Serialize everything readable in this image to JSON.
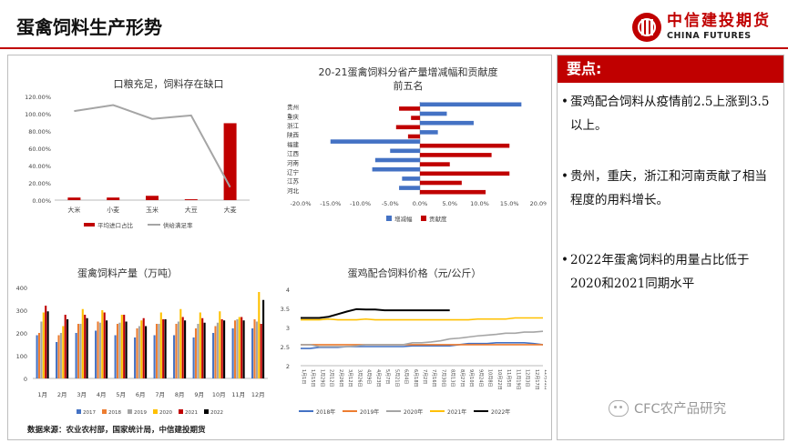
{
  "header": {
    "title": "蛋禽饲料生产形势"
  },
  "logo": {
    "cn": "中信建投期货",
    "en": "CHINA FUTURES"
  },
  "key_points": {
    "heading": "要点:",
    "items": [
      "蛋鸡配合饲料从疫情前2.5上涨到3.5以上。",
      "贵州，重庆，浙江和河南贡献了相当程度的用料增长。",
      "2022年蛋禽饲料的用量占比低于2020和2021同期水平"
    ]
  },
  "source": "数据来源：农业农村部，国家统计局，中信建投期货",
  "watermark": "CFC农产品研究",
  "colors": {
    "accent": "#c00000",
    "blue": "#4472c4",
    "red": "#c00000",
    "gray": "#a5a5a5",
    "yellow": "#ffc000",
    "black": "#000000",
    "orange": "#ed7d31"
  },
  "chart_data": [
    {
      "type": "bar",
      "title": "口粮充足，饲料存在缺口",
      "categories": [
        "大米",
        "小麦",
        "玉米",
        "大豆",
        "大麦"
      ],
      "ylim": [
        0,
        1.2
      ],
      "yticks": [
        "0.00%",
        "20.00%",
        "40.00%",
        "60.00%",
        "80.00%",
        "100.00%",
        "120.00%"
      ],
      "series": [
        {
          "name": "平均进口占比",
          "type": "bar",
          "values": [
            0.03,
            0.03,
            0.05,
            0.01,
            0.89
          ]
        },
        {
          "name": "供给满足率",
          "type": "line",
          "values": [
            1.03,
            1.1,
            0.94,
            0.98,
            0.15
          ]
        }
      ],
      "legend": "bottom"
    },
    {
      "type": "bar",
      "orientation": "horizontal",
      "title": "20-21蛋禽饲料分省产量增减幅和贡献度前五名",
      "categories": [
        "贵州",
        "重庆",
        "浙江",
        "陕西",
        "福建",
        "江西",
        "河南",
        "辽宁",
        "江苏",
        "河北"
      ],
      "xlim": [
        -0.2,
        0.2
      ],
      "xticks": [
        "-20.0%",
        "-15.0%",
        "-10.0%",
        "-5.0%",
        "0.0%",
        "5.0%",
        "10.0%",
        "15.0%",
        "20.0%"
      ],
      "series": [
        {
          "name": "增减幅",
          "values": [
            0.17,
            0.045,
            0.09,
            0.03,
            -0.15,
            -0.05,
            -0.075,
            -0.08,
            -0.03,
            -0.035
          ]
        },
        {
          "name": "贡献度",
          "values": [
            -0.035,
            -0.015,
            -0.04,
            -0.02,
            0.15,
            0.12,
            0.05,
            0.15,
            0.07,
            0.11
          ]
        }
      ],
      "legend": "bottom"
    },
    {
      "type": "bar",
      "title": "蛋禽饲料产量（万吨）",
      "categories": [
        "1月",
        "2月",
        "3月",
        "4月",
        "5月",
        "6月",
        "7月",
        "8月",
        "9月",
        "10月",
        "11月",
        "12月"
      ],
      "ylim": [
        0,
        400
      ],
      "yticks": [
        "0",
        "100",
        "200",
        "300",
        "400"
      ],
      "series": [
        {
          "name": "2017",
          "values": [
            190,
            160,
            200,
            210,
            190,
            180,
            190,
            190,
            180,
            200,
            220,
            220
          ]
        },
        {
          "name": "2018",
          "values": [
            200,
            190,
            240,
            250,
            240,
            220,
            240,
            240,
            220,
            230,
            255,
            260
          ]
        },
        {
          "name": "2019",
          "values": [
            250,
            200,
            240,
            245,
            245,
            230,
            240,
            250,
            240,
            245,
            260,
            250
          ]
        },
        {
          "name": "2020",
          "values": [
            290,
            230,
            305,
            300,
            280,
            255,
            290,
            305,
            290,
            295,
            270,
            380
          ]
        },
        {
          "name": "2021",
          "values": [
            320,
            280,
            280,
            290,
            280,
            265,
            260,
            270,
            265,
            260,
            270,
            240
          ]
        },
        {
          "name": "2022",
          "values": [
            295,
            260,
            265,
            255,
            250,
            230,
            260,
            255,
            245,
            255,
            255,
            345
          ]
        }
      ],
      "legend": "bottom"
    },
    {
      "type": "line",
      "title": "蛋鸡配合饲料价格（元/公斤）",
      "ylim": [
        2,
        4
      ],
      "yticks": [
        "2",
        "2.5",
        "3",
        "3.5",
        "4"
      ],
      "x_labels": [
        "1月1日",
        "1月15日",
        "1月29日",
        "2月12日",
        "2月26日",
        "3月12日",
        "3月26日",
        "4月9日",
        "4月23日",
        "5月7日",
        "5月21日",
        "6月4日",
        "6月18日",
        "7月2日",
        "7月16日",
        "7月30日",
        "8月13日",
        "8月27日",
        "9月10日",
        "9月24日",
        "10月8日",
        "10月22日",
        "11月5日",
        "11月19日",
        "12月3日",
        "12月17日",
        "12月31日"
      ],
      "series": [
        {
          "name": "2018年",
          "values": [
            2.45,
            2.45,
            2.48,
            2.48,
            2.48,
            2.5,
            2.5,
            2.5,
            2.5,
            2.5,
            2.5,
            2.5,
            2.52,
            2.52,
            2.52,
            2.52,
            2.52,
            2.55,
            2.58,
            2.58,
            2.58,
            2.6,
            2.6,
            2.6,
            2.6,
            2.58,
            2.55
          ]
        },
        {
          "name": "2019年",
          "values": [
            2.55,
            2.55,
            2.55,
            2.55,
            2.55,
            2.55,
            2.55,
            2.55,
            2.55,
            2.55,
            2.55,
            2.55,
            2.55,
            2.55,
            2.55,
            2.55,
            2.55,
            2.55,
            2.55,
            2.55,
            2.55,
            2.55,
            2.55,
            2.55,
            2.55,
            2.55,
            2.55
          ]
        },
        {
          "name": "2020年",
          "values": [
            2.55,
            2.55,
            2.5,
            2.5,
            2.5,
            2.5,
            2.52,
            2.55,
            2.55,
            2.55,
            2.55,
            2.55,
            2.6,
            2.6,
            2.62,
            2.65,
            2.7,
            2.72,
            2.75,
            2.78,
            2.8,
            2.82,
            2.85,
            2.85,
            2.88,
            2.88,
            2.9
          ]
        },
        {
          "name": "2021年",
          "values": [
            3.2,
            3.2,
            3.2,
            3.22,
            3.2,
            3.2,
            3.2,
            3.22,
            3.2,
            3.2,
            3.2,
            3.2,
            3.2,
            3.2,
            3.2,
            3.2,
            3.2,
            3.2,
            3.2,
            3.22,
            3.22,
            3.22,
            3.22,
            3.25,
            3.25,
            3.25,
            3.25
          ]
        },
        {
          "name": "2022年",
          "values": [
            3.25,
            3.25,
            3.25,
            3.28,
            3.35,
            3.42,
            3.48,
            3.47,
            3.47,
            3.45,
            3.45,
            3.45,
            3.45,
            3.45,
            3.45,
            3.45,
            3.45,
            null,
            null,
            null,
            null,
            null,
            null,
            null,
            null,
            null,
            null
          ]
        }
      ],
      "legend": "bottom"
    }
  ]
}
